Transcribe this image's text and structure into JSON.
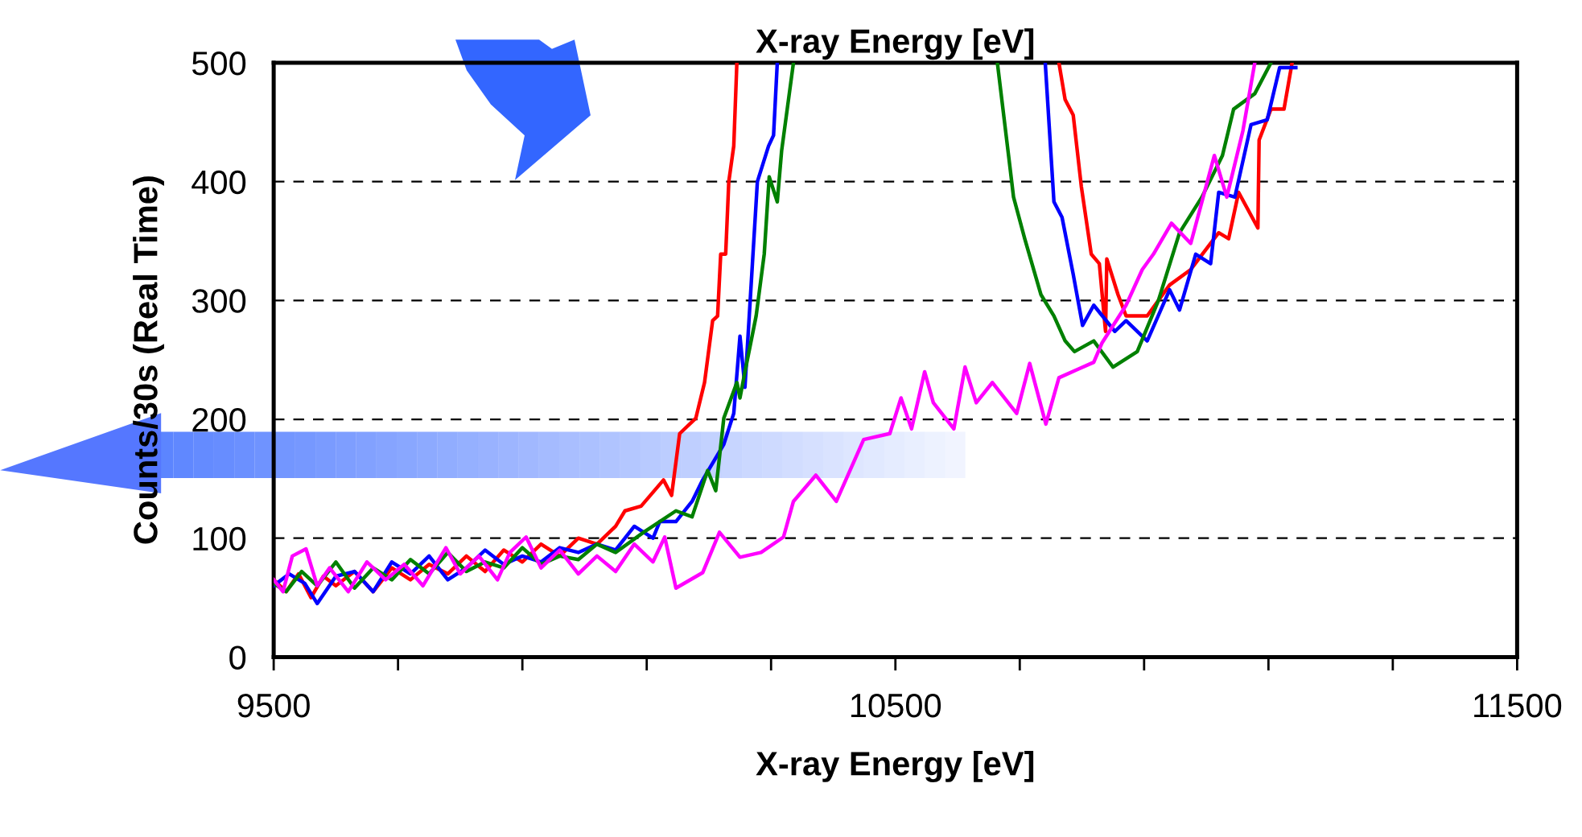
{
  "chart_data": {
    "type": "line",
    "xlabel": "X-ray Energy [eV]",
    "ylabel": "Counts/30s (Real Time)",
    "annotations": [
      "X-ray Energy [eV]"
    ],
    "xlim": [
      9500,
      11500
    ],
    "ylim": [
      0,
      500
    ],
    "xticks": [
      9500,
      {
        "value": 9700,
        "label": null
      },
      {
        "value": 9900,
        "label": null
      },
      {
        "value": 10100,
        "label": null
      },
      {
        "value": 10300,
        "label": null
      },
      10500,
      {
        "value": 10700,
        "label": null
      },
      {
        "value": 10900,
        "label": null
      },
      {
        "value": 11100,
        "label": null
      },
      {
        "value": 11300,
        "label": null
      },
      11500
    ],
    "yticks": [
      0,
      100,
      200,
      300,
      400,
      500
    ],
    "grid": "y",
    "line_style": "solid",
    "marker": "none",
    "series": [
      {
        "color": "#ff0000",
        "x": [
          9500,
          9520,
          9540,
          9560,
          9580,
          9600,
          9630,
          9660,
          9690,
          9720,
          9750,
          9780,
          9810,
          9840,
          9870,
          9900,
          9930,
          9960,
          9990,
          10020,
          10050,
          10065,
          10091,
          10127,
          10140,
          10153,
          10179,
          10193,
          10206,
          10214,
          10219,
          10227,
          10232,
          10240,
          10245,
          10500,
          10763,
          10773,
          10786,
          10799,
          10815,
          10828,
          10838,
          10840,
          10858,
          10871,
          10905,
          10941,
          10975,
          11020,
          11036,
          11052,
          11083,
          11085,
          11104,
          11125,
          11138
        ],
        "values": [
          65,
          55,
          70,
          50,
          68,
          60,
          72,
          55,
          75,
          65,
          78,
          70,
          85,
          72,
          90,
          80,
          95,
          85,
          100,
          95,
          110,
          123,
          127,
          149,
          136,
          188,
          201,
          231,
          283,
          287,
          339,
          339,
          400,
          430,
          500,
          null,
          500,
          469,
          456,
          396,
          339,
          331,
          274,
          335,
          305,
          287,
          287,
          313,
          326,
          357,
          352,
          391,
          361,
          435,
          461,
          461,
          500
        ]
      },
      {
        "color": "#0000ff",
        "x": [
          9500,
          9525,
          9550,
          9570,
          9600,
          9630,
          9660,
          9690,
          9720,
          9750,
          9780,
          9810,
          9840,
          9870,
          9900,
          9930,
          9960,
          9990,
          10020,
          10050,
          10080,
          10110,
          10121,
          10147,
          10173,
          10190,
          10224,
          10240,
          10250,
          10258,
          10270,
          10278,
          10296,
          10304,
          10310,
          10500,
          10741,
          10755,
          10768,
          10786,
          10801,
          10819,
          10853,
          10871,
          10905,
          10941,
          10957,
          10983,
          11007,
          11020,
          11046,
          11072,
          11098,
          11118,
          11144
        ],
        "values": [
          60,
          70,
          62,
          45,
          68,
          72,
          55,
          80,
          70,
          85,
          65,
          75,
          90,
          78,
          85,
          80,
          92,
          88,
          95,
          90,
          110,
          100,
          114,
          114,
          131,
          149,
          179,
          205,
          270,
          227,
          331,
          400,
          430,
          439,
          500,
          null,
          500,
          383,
          370,
          322,
          279,
          296,
          274,
          283,
          266,
          309,
          292,
          339,
          331,
          391,
          387,
          448,
          452,
          496,
          496
        ]
      },
      {
        "color": "#008000",
        "x": [
          9500,
          9520,
          9545,
          9570,
          9600,
          9630,
          9660,
          9690,
          9720,
          9750,
          9780,
          9810,
          9840,
          9870,
          9900,
          9930,
          9960,
          9990,
          10020,
          10050,
          10095,
          10147,
          10173,
          10198,
          10211,
          10224,
          10245,
          10250,
          10258,
          10276,
          10289,
          10297,
          10310,
          10317,
          10336,
          10500,
          10664,
          10682,
          10690,
          10708,
          10734,
          10755,
          10773,
          10788,
          10819,
          10850,
          10889,
          10923,
          10957,
          10993,
          11026,
          11044,
          11078,
          11104
        ],
        "values": [
          62,
          55,
          72,
          60,
          80,
          58,
          75,
          65,
          82,
          70,
          88,
          72,
          80,
          75,
          92,
          78,
          85,
          82,
          95,
          88,
          105,
          123,
          118,
          157,
          140,
          201,
          231,
          218,
          240,
          287,
          339,
          404,
          383,
          426,
          500,
          null,
          500,
          422,
          387,
          352,
          305,
          287,
          266,
          257,
          266,
          244,
          257,
          300,
          357,
          387,
          422,
          461,
          474,
          500
        ]
      },
      {
        "color": "#ff00ff",
        "x": [
          9500,
          9515,
          9530,
          9552,
          9570,
          9590,
          9620,
          9650,
          9680,
          9710,
          9740,
          9777,
          9800,
          9830,
          9860,
          9880,
          9906,
          9930,
          9960,
          9990,
          10020,
          10050,
          10080,
          10110,
          10129,
          10147,
          10190,
          10217,
          10250,
          10284,
          10320,
          10336,
          10372,
          10405,
          10449,
          10491,
          10509,
          10526,
          10547,
          10561,
          10594,
          10612,
          10630,
          10656,
          10695,
          10716,
          10742,
          10763,
          10793,
          10819,
          10832,
          10871,
          10897,
          10915,
          10944,
          10975,
          11013,
          11033,
          11059,
          11078
        ],
        "values": [
          65,
          55,
          85,
          91,
          60,
          75,
          55,
          80,
          65,
          78,
          60,
          92,
          70,
          85,
          65,
          88,
          101,
          75,
          90,
          70,
          85,
          72,
          95,
          80,
          101,
          58,
          71,
          105,
          84,
          88,
          101,
          131,
          153,
          131,
          183,
          188,
          218,
          192,
          240,
          214,
          192,
          244,
          214,
          231,
          205,
          247,
          196,
          235,
          242,
          248,
          264,
          296,
          326,
          339,
          365,
          348,
          422,
          387,
          443,
          500
        ]
      }
    ]
  }
}
